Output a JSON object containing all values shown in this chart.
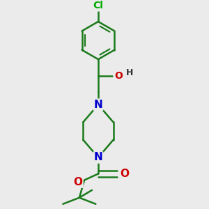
{
  "background_color": "#ebebeb",
  "bond_color": "#1a7a1a",
  "bond_width": 1.8,
  "atom_colors": {
    "Cl": "#00aa00",
    "N": "#0000cc",
    "O": "#cc0000",
    "H": "#000000"
  },
  "figsize": [
    3.0,
    3.0
  ],
  "dpi": 100
}
